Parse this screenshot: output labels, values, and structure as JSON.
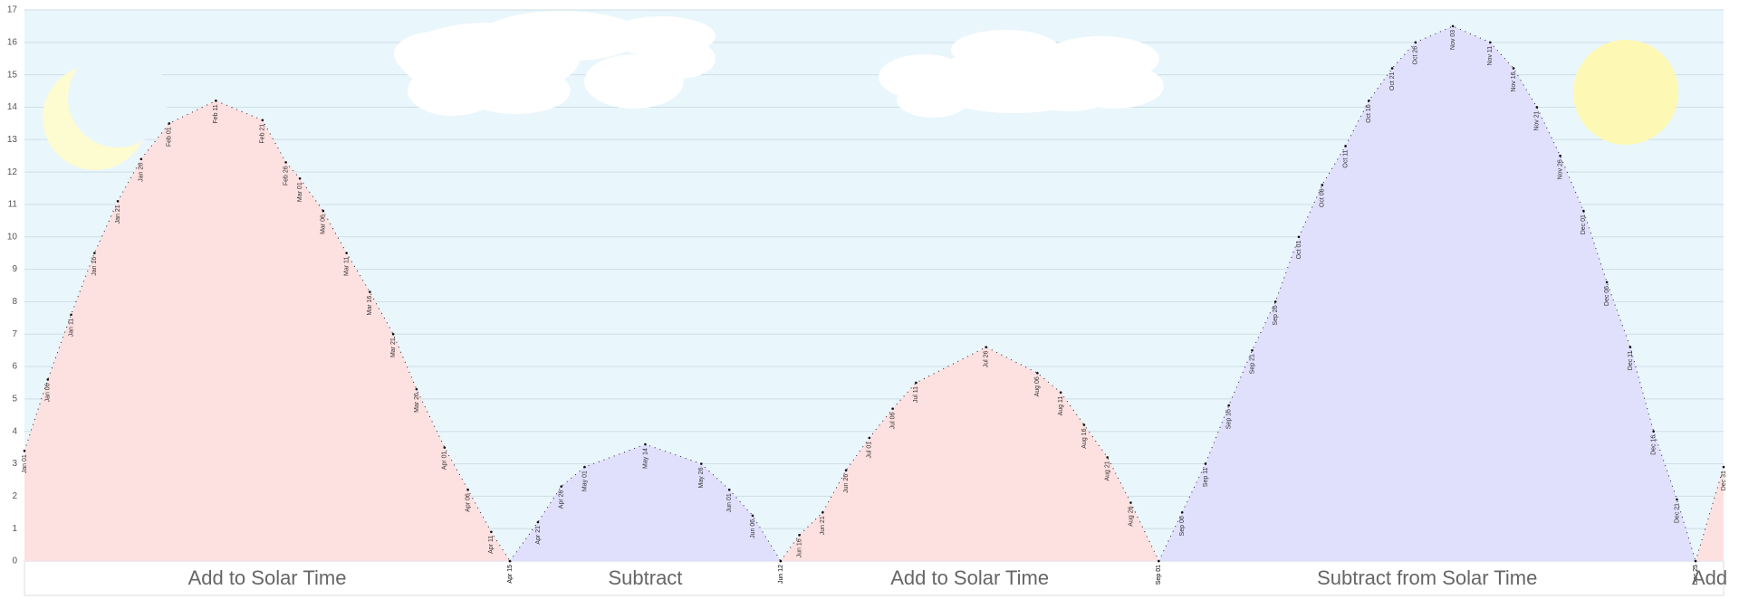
{
  "chart_data": {
    "type": "area",
    "ylim": [
      0,
      17
    ],
    "yticks": [
      0,
      1,
      2,
      3,
      4,
      5,
      6,
      7,
      8,
      9,
      10,
      11,
      12,
      13,
      14,
      15,
      16,
      17
    ],
    "grid": true,
    "series": [
      {
        "name": "Add to Solar Time",
        "color": "#fde0e0",
        "x": [
          "Jan 01",
          "Jan 06",
          "Jan 11",
          "Jan 16",
          "Jan 21",
          "Jan 26",
          "Feb 01",
          "Feb 11",
          "Feb 21",
          "Feb 26",
          "Mar 01",
          "Mar 06",
          "Mar 11",
          "Mar 16",
          "Mar 21",
          "Mar 26",
          "Apr 01",
          "Apr 06",
          "Apr 11",
          "Apr 15"
        ],
        "values": [
          3.4,
          5.6,
          7.6,
          9.5,
          11.1,
          12.4,
          13.5,
          14.2,
          13.6,
          12.3,
          11.8,
          10.8,
          9.5,
          8.3,
          7.0,
          5.3,
          3.5,
          2.2,
          0.9,
          0
        ]
      },
      {
        "name": "Subtract",
        "color": "#e0dffc",
        "x": [
          "Apr 15",
          "Apr 21",
          "Apr 26",
          "May 01",
          "May 14",
          "May 26",
          "Jun 01",
          "Jun 06",
          "Jun 12"
        ],
        "values": [
          0,
          1.2,
          2.3,
          2.9,
          3.6,
          3.0,
          2.2,
          1.4,
          0
        ]
      },
      {
        "name": "Add to Solar Time",
        "color": "#fde0e0",
        "x": [
          "Jun 12",
          "Jun 16",
          "Jun 21",
          "Jun 26",
          "Jul 01",
          "Jul 06",
          "Jul 11",
          "Jul 26",
          "Aug 06",
          "Aug 11",
          "Aug 16",
          "Aug 21",
          "Aug 26",
          "Sep 01"
        ],
        "values": [
          0,
          0.8,
          1.5,
          2.8,
          3.8,
          4.7,
          5.5,
          6.6,
          5.8,
          5.2,
          4.2,
          3.2,
          1.8,
          0
        ]
      },
      {
        "name": "Subtract from Solar Time",
        "color": "#e0dffc",
        "x": [
          "Sep 01",
          "Sep 06",
          "Sep 11",
          "Sep 16",
          "Sep 21",
          "Sep 26",
          "Oct 01",
          "Oct 06",
          "Oct 11",
          "Oct 16",
          "Oct 21",
          "Oct 26",
          "Nov 03",
          "Nov 11",
          "Nov 16",
          "Nov 21",
          "Nov 26",
          "Dec 01",
          "Dec 06",
          "Dec 11",
          "Dec 16",
          "Dec 21",
          "Dec 25"
        ],
        "values": [
          0,
          1.5,
          3.0,
          4.8,
          6.5,
          8.0,
          10.0,
          11.6,
          12.8,
          14.2,
          15.2,
          16.0,
          16.5,
          16.0,
          15.2,
          14.0,
          12.5,
          10.8,
          8.6,
          6.6,
          4.0,
          1.9,
          0
        ]
      },
      {
        "name": "Add",
        "color": "#fde0e0",
        "x": [
          "Dec 25",
          "Dec 31"
        ],
        "values": [
          0,
          2.9
        ]
      }
    ]
  }
}
